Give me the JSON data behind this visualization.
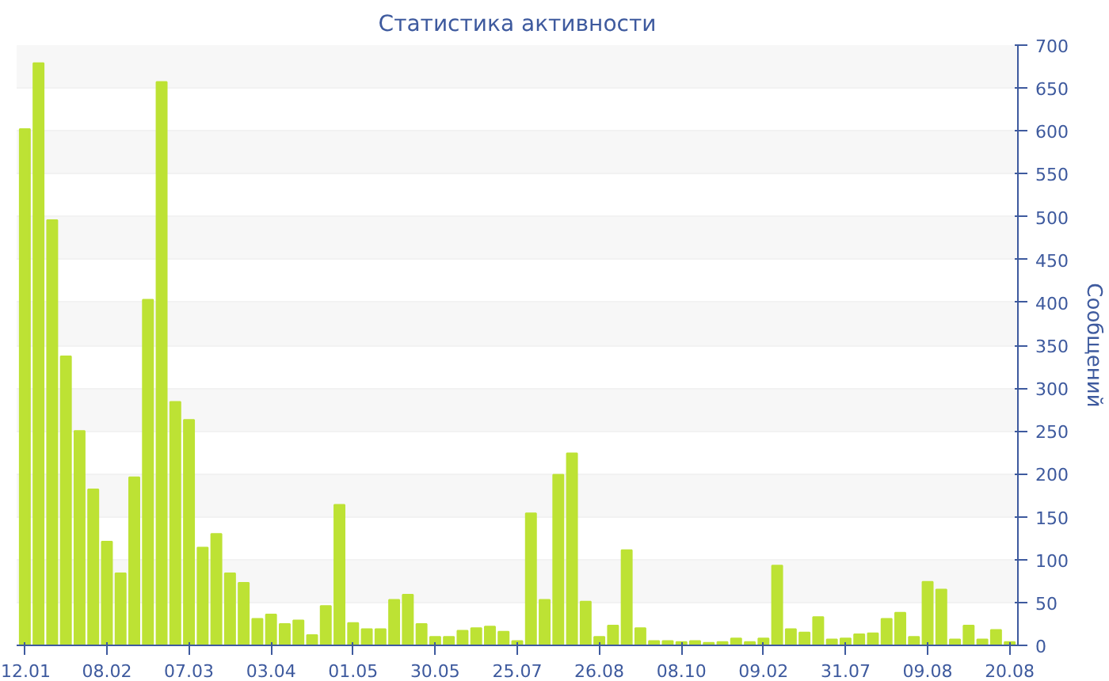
{
  "chart_data": {
    "type": "bar",
    "title": "Статистика активности",
    "ylabel": "Сообщений",
    "categories": [
      "12.01",
      null,
      null,
      null,
      null,
      null,
      "08.02",
      null,
      null,
      null,
      null,
      null,
      "07.03",
      null,
      null,
      null,
      null,
      null,
      "03.04",
      null,
      null,
      null,
      null,
      null,
      "01.05",
      null,
      null,
      null,
      null,
      null,
      "30.05",
      null,
      null,
      null,
      null,
      null,
      "25.07",
      null,
      null,
      null,
      null,
      null,
      "26.08",
      null,
      null,
      null,
      null,
      null,
      "08.10",
      null,
      null,
      null,
      null,
      null,
      "09.02",
      null,
      null,
      null,
      null,
      null,
      "31.07",
      null,
      null,
      null,
      null,
      null,
      "09.08",
      null,
      null,
      null,
      null,
      null,
      "20.08"
    ],
    "values": [
      602,
      679,
      496,
      337,
      250,
      182,
      121,
      84,
      196,
      403,
      657,
      284,
      263,
      114,
      130,
      84,
      73,
      31,
      36,
      25,
      29,
      12,
      46,
      164,
      26,
      19,
      19,
      53,
      59,
      25,
      10,
      10,
      17,
      20,
      22,
      16,
      5,
      154,
      53,
      199,
      224,
      51,
      10,
      23,
      111,
      20,
      5,
      5,
      4,
      5,
      3,
      4,
      8,
      4,
      8,
      93,
      19,
      15,
      33,
      7,
      8,
      13,
      14,
      31,
      38,
      10,
      74,
      65,
      7,
      23,
      7,
      18,
      4
    ],
    "color": "#bde234",
    "ylim": [
      0,
      700
    ],
    "yticks": [
      0,
      50,
      100,
      150,
      200,
      250,
      300,
      350,
      400,
      450,
      500,
      550,
      600,
      650,
      700
    ],
    "grid": "y"
  }
}
